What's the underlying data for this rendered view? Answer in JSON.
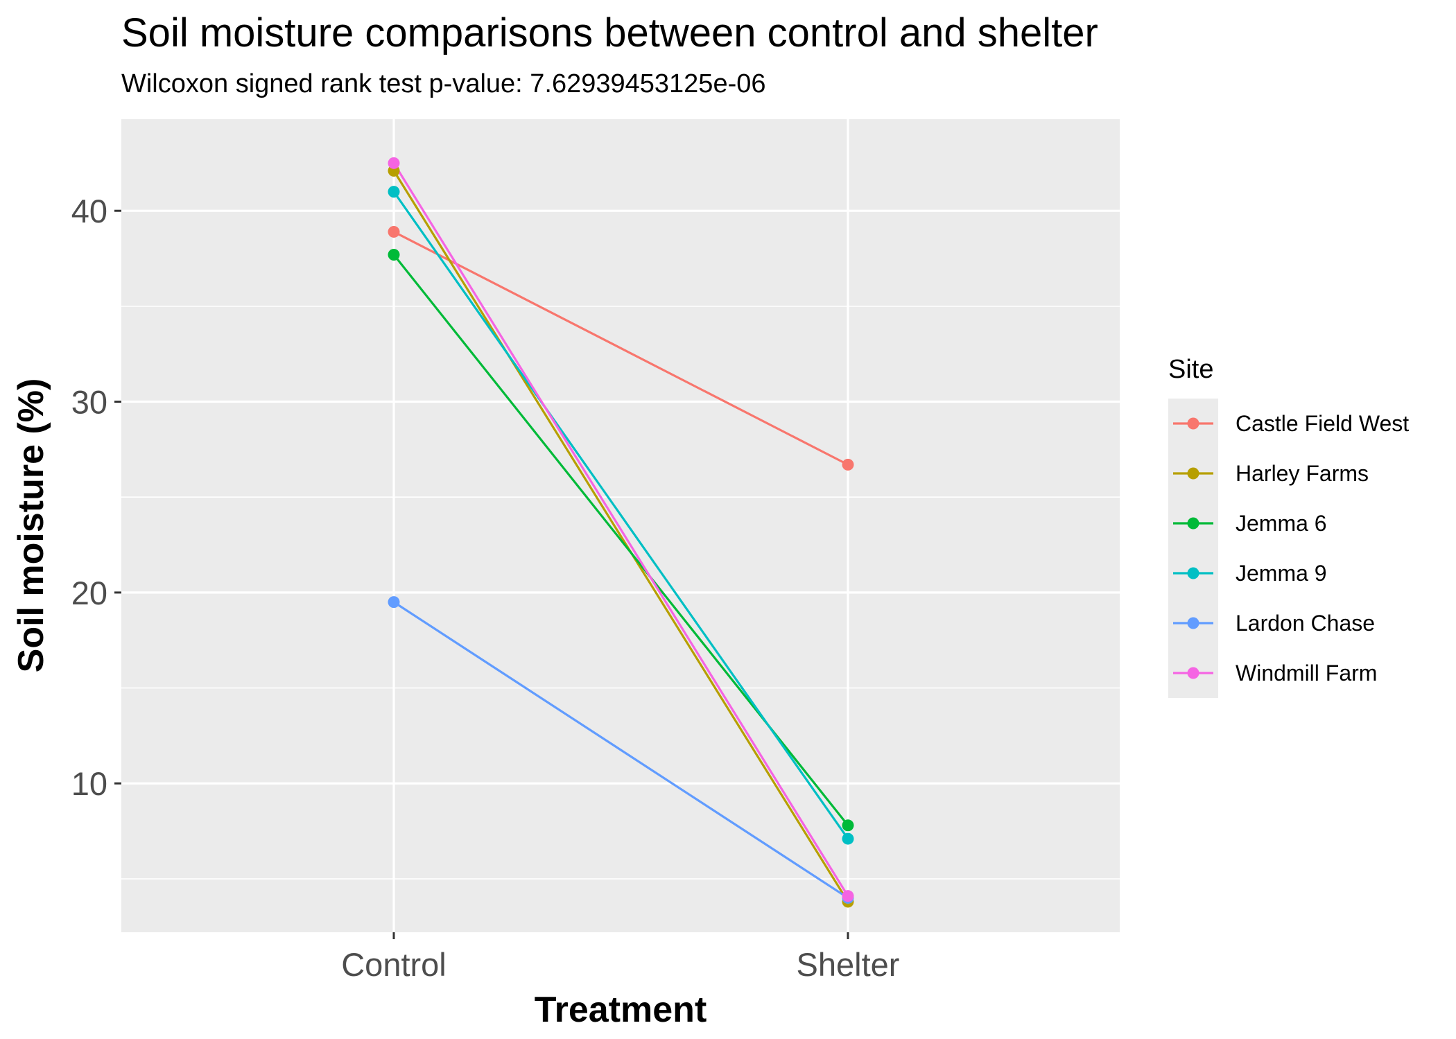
{
  "chart_data": {
    "type": "line",
    "title": "Soil moisture comparisons between control and shelter",
    "subtitle": "Wilcoxon signed rank test p-value: 7.62939453125e-06",
    "xlabel": "Treatment",
    "ylabel": "Soil moisture (%)",
    "categories": [
      "Control",
      "Shelter"
    ],
    "ylim": [
      2.2,
      44.8
    ],
    "yticks": [
      10,
      20,
      30,
      40
    ],
    "grid": true,
    "legend_title": "Site",
    "legend_position": "right",
    "series": [
      {
        "name": "Castle Field West",
        "color": "#F8766D",
        "values": [
          38.9,
          26.7
        ]
      },
      {
        "name": "Harley Farms",
        "color": "#B79F00",
        "values": [
          42.1,
          3.8
        ]
      },
      {
        "name": "Jemma 6",
        "color": "#00BA38",
        "values": [
          37.7,
          7.8
        ]
      },
      {
        "name": "Jemma 9",
        "color": "#00BFC4",
        "values": [
          41.0,
          7.1
        ]
      },
      {
        "name": "Lardon Chase",
        "color": "#619CFF",
        "values": [
          19.5,
          4.0
        ]
      },
      {
        "name": "Windmill Farm",
        "color": "#F564E3",
        "values": [
          42.5,
          4.1
        ]
      }
    ]
  }
}
